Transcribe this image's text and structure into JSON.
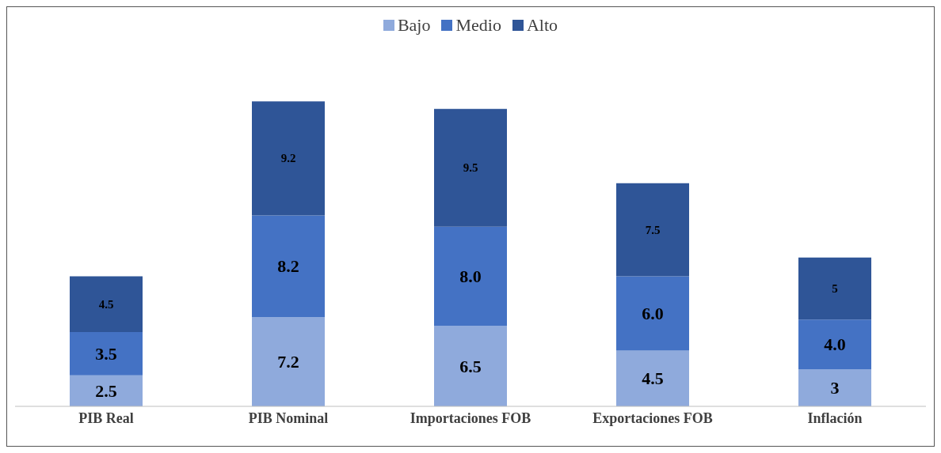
{
  "chart_data": {
    "type": "bar",
    "stacked": true,
    "categories": [
      "PIB Real",
      "PIB Nominal",
      "Importaciones FOB",
      "Exportaciones FOB",
      "Inflación"
    ],
    "series": [
      {
        "name": "Bajo",
        "color": "#8faadc",
        "values": [
          2.5,
          7.2,
          6.5,
          4.5,
          3
        ],
        "value_labels": [
          "2.5",
          "7.2",
          "6.5",
          "4.5",
          "3"
        ]
      },
      {
        "name": "Medio",
        "color": "#4472c4",
        "values": [
          3.5,
          8.2,
          8.0,
          6.0,
          4.0
        ],
        "value_labels": [
          "3.5",
          "8.2",
          "8.0",
          "6.0",
          "4.0"
        ]
      },
      {
        "name": "Alto",
        "color": "#2f5597",
        "values": [
          4.5,
          9.2,
          9.5,
          7.5,
          5
        ],
        "value_labels": [
          "4.5",
          "9.2",
          "9.5",
          "7.5",
          "5"
        ]
      }
    ],
    "tick_labels": "x",
    "legend": "top"
  }
}
